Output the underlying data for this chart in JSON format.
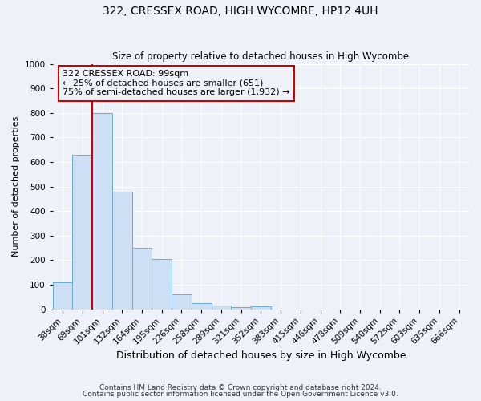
{
  "title": "322, CRESSEX ROAD, HIGH WYCOMBE, HP12 4UH",
  "subtitle": "Size of property relative to detached houses in High Wycombe",
  "xlabel": "Distribution of detached houses by size in High Wycombe",
  "ylabel": "Number of detached properties",
  "bin_labels": [
    "38sqm",
    "69sqm",
    "101sqm",
    "132sqm",
    "164sqm",
    "195sqm",
    "226sqm",
    "258sqm",
    "289sqm",
    "321sqm",
    "352sqm",
    "383sqm",
    "415sqm",
    "446sqm",
    "478sqm",
    "509sqm",
    "540sqm",
    "572sqm",
    "603sqm",
    "635sqm",
    "666sqm"
  ],
  "bar_values": [
    110,
    630,
    800,
    480,
    250,
    205,
    60,
    25,
    15,
    8,
    10,
    0,
    0,
    0,
    0,
    0,
    0,
    0,
    0,
    0,
    0
  ],
  "bar_color": "#ccdff5",
  "bar_edge_color": "#6aaad4",
  "vline_color": "#cc0000",
  "vline_x_index": 2,
  "ylim": [
    0,
    1000
  ],
  "yticks": [
    0,
    100,
    200,
    300,
    400,
    500,
    600,
    700,
    800,
    900,
    1000
  ],
  "annotation_line1": "322 CRESSEX ROAD: 99sqm",
  "annotation_line2": "← 25% of detached houses are smaller (651)",
  "annotation_line3": "75% of semi-detached houses are larger (1,932) →",
  "annotation_box_color": "#cc0000",
  "footnote1": "Contains HM Land Registry data © Crown copyright and database right 2024.",
  "footnote2": "Contains public sector information licensed under the Open Government Licence v3.0.",
  "background_color": "#eef2f8",
  "grid_color": "#ffffff",
  "title_fontsize": 10,
  "subtitle_fontsize": 8.5,
  "ylabel_fontsize": 8,
  "xlabel_fontsize": 9,
  "tick_fontsize": 7.5,
  "annot_fontsize": 8,
  "footnote_fontsize": 6.5
}
